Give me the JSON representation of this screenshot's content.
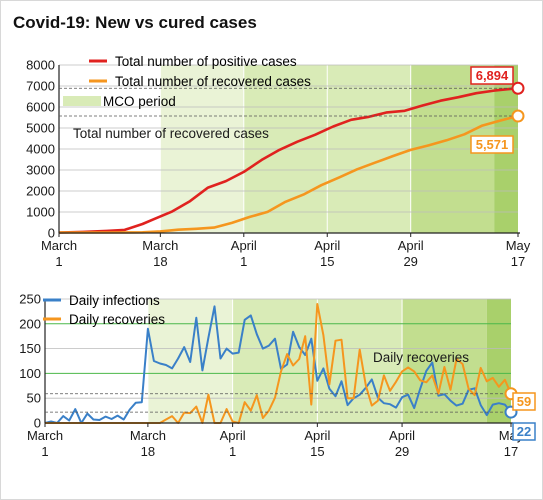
{
  "title": "Covid-19: New vs cured cases",
  "colors": {
    "positive": "#e0221f",
    "recovered": "#f5961e",
    "daily_infections": "#3a80c8",
    "daily_recoveries": "#f5961e",
    "mco_light": "#eaf3d6",
    "mco_mid": "#d9ebb7",
    "mco_dark": "#c2de8f",
    "mco_darkest": "#a9d06b",
    "gridline_green": "#4bb84a"
  },
  "chart_data": [
    {
      "type": "line",
      "x_start_date": "March 1",
      "x_end_date": "May 17",
      "x_tick_labels": [
        {
          "line1": "March",
          "line2": "1"
        },
        {
          "line1": "March",
          "line2": "18"
        },
        {
          "line1": "April",
          "line2": "1"
        },
        {
          "line1": "April",
          "line2": "15"
        },
        {
          "line1": "April",
          "line2": "29"
        },
        {
          "line1": "May",
          "line2": "17"
        }
      ],
      "ylim": [
        0,
        8000
      ],
      "y_ticks": [
        "0",
        "1000",
        "2000",
        "3000",
        "4000",
        "5000",
        "6000",
        "7000",
        "8000"
      ],
      "mco_period_label": "MCO period",
      "annotation": "Total number of recovered cases",
      "series": [
        {
          "name": "Total number of positive cases",
          "end_label": "6,894",
          "points": [
            [
              "March 1",
              25
            ],
            [
              "March 5",
              50
            ],
            [
              "March 9",
              99
            ],
            [
              "March 12",
              149
            ],
            [
              "March 15",
              428
            ],
            [
              "March 17",
              673
            ],
            [
              "March 20",
              1030
            ],
            [
              "March 23",
              1518
            ],
            [
              "March 26",
              2161
            ],
            [
              "March 29",
              2470
            ],
            [
              "April 1",
              2908
            ],
            [
              "April 4",
              3483
            ],
            [
              "April 7",
              3963
            ],
            [
              "April 10",
              4346
            ],
            [
              "April 13",
              4683
            ],
            [
              "April 16",
              5072
            ],
            [
              "April 19",
              5389
            ],
            [
              "April 22",
              5532
            ],
            [
              "April 25",
              5742
            ],
            [
              "April 28",
              5820
            ],
            [
              "May 1",
              6071
            ],
            [
              "May 4",
              6298
            ],
            [
              "May 7",
              6467
            ],
            [
              "May 10",
              6656
            ],
            [
              "May 13",
              6779
            ],
            [
              "May 17",
              6894
            ]
          ]
        },
        {
          "name": "Total number of recovered cases",
          "end_label": "5,571",
          "points": [
            [
              "March 1",
              22
            ],
            [
              "March 10",
              26
            ],
            [
              "March 15",
              35
            ],
            [
              "March 18",
              75
            ],
            [
              "March 21",
              159
            ],
            [
              "March 24",
              199
            ],
            [
              "March 27",
              259
            ],
            [
              "March 30",
              479
            ],
            [
              "April 2",
              767
            ],
            [
              "April 5",
              1005
            ],
            [
              "April 8",
              1487
            ],
            [
              "April 11",
              1830
            ],
            [
              "April 14",
              2276
            ],
            [
              "April 17",
              2647
            ],
            [
              "April 20",
              3032
            ],
            [
              "April 23",
              3349
            ],
            [
              "April 26",
              3663
            ],
            [
              "April 29",
              3957
            ],
            [
              "May 2",
              4171
            ],
            [
              "May 5",
              4413
            ],
            [
              "May 8",
              4702
            ],
            [
              "May 11",
              5113
            ],
            [
              "May 14",
              5351
            ],
            [
              "May 17",
              5571
            ]
          ]
        }
      ]
    },
    {
      "type": "line",
      "x_start_date": "March 1",
      "x_end_date": "May 17",
      "x_tick_labels": [
        {
          "line1": "March",
          "line2": "1"
        },
        {
          "line1": "March",
          "line2": "18"
        },
        {
          "line1": "April",
          "line2": "1"
        },
        {
          "line1": "April",
          "line2": "15"
        },
        {
          "line1": "April",
          "line2": "29"
        },
        {
          "line1": "May",
          "line2": "17"
        }
      ],
      "ylim": [
        0,
        250
      ],
      "y_ticks": [
        "0",
        "50",
        "100",
        "150",
        "200",
        "250"
      ],
      "annotation": "Daily recoveries",
      "series": [
        {
          "name": "Daily infections",
          "end_label": "22",
          "values": [
            0,
            3,
            0,
            14,
            5,
            28,
            0,
            19,
            7,
            6,
            13,
            8,
            15,
            7,
            27,
            41,
            42,
            190,
            125,
            120,
            117,
            110,
            130,
            153,
            123,
            212,
            106,
            172,
            235,
            130,
            150,
            140,
            142,
            208,
            217,
            179,
            150,
            156,
            170,
            109,
            118,
            184,
            153,
            137,
            170,
            85,
            110,
            69,
            54,
            84,
            36,
            50,
            57,
            71,
            88,
            51,
            40,
            38,
            31,
            52,
            57,
            30,
            69,
            105,
            122,
            55,
            58,
            45,
            35,
            39,
            67,
            70,
            36,
            16,
            37,
            40,
            37,
            22
          ]
        },
        {
          "name": "Daily recoveries",
          "end_label": "59",
          "values": [
            0,
            0,
            0,
            0,
            0,
            0,
            0,
            0,
            0,
            0,
            0,
            0,
            0,
            0,
            0,
            0,
            0,
            0,
            0,
            0,
            7,
            14,
            0,
            21,
            20,
            33,
            0,
            57,
            0,
            0,
            28,
            3,
            0,
            42,
            25,
            56,
            10,
            25,
            51,
            104,
            139,
            116,
            129,
            175,
            37,
            240,
            177,
            78,
            166,
            168,
            50,
            50,
            148,
            76,
            35,
            45,
            96,
            65,
            83,
            104,
            112,
            104,
            86,
            82,
            96,
            59,
            113,
            67,
            129,
            119,
            69,
            56,
            111,
            84,
            91,
            73,
            87,
            59
          ]
        }
      ]
    }
  ]
}
